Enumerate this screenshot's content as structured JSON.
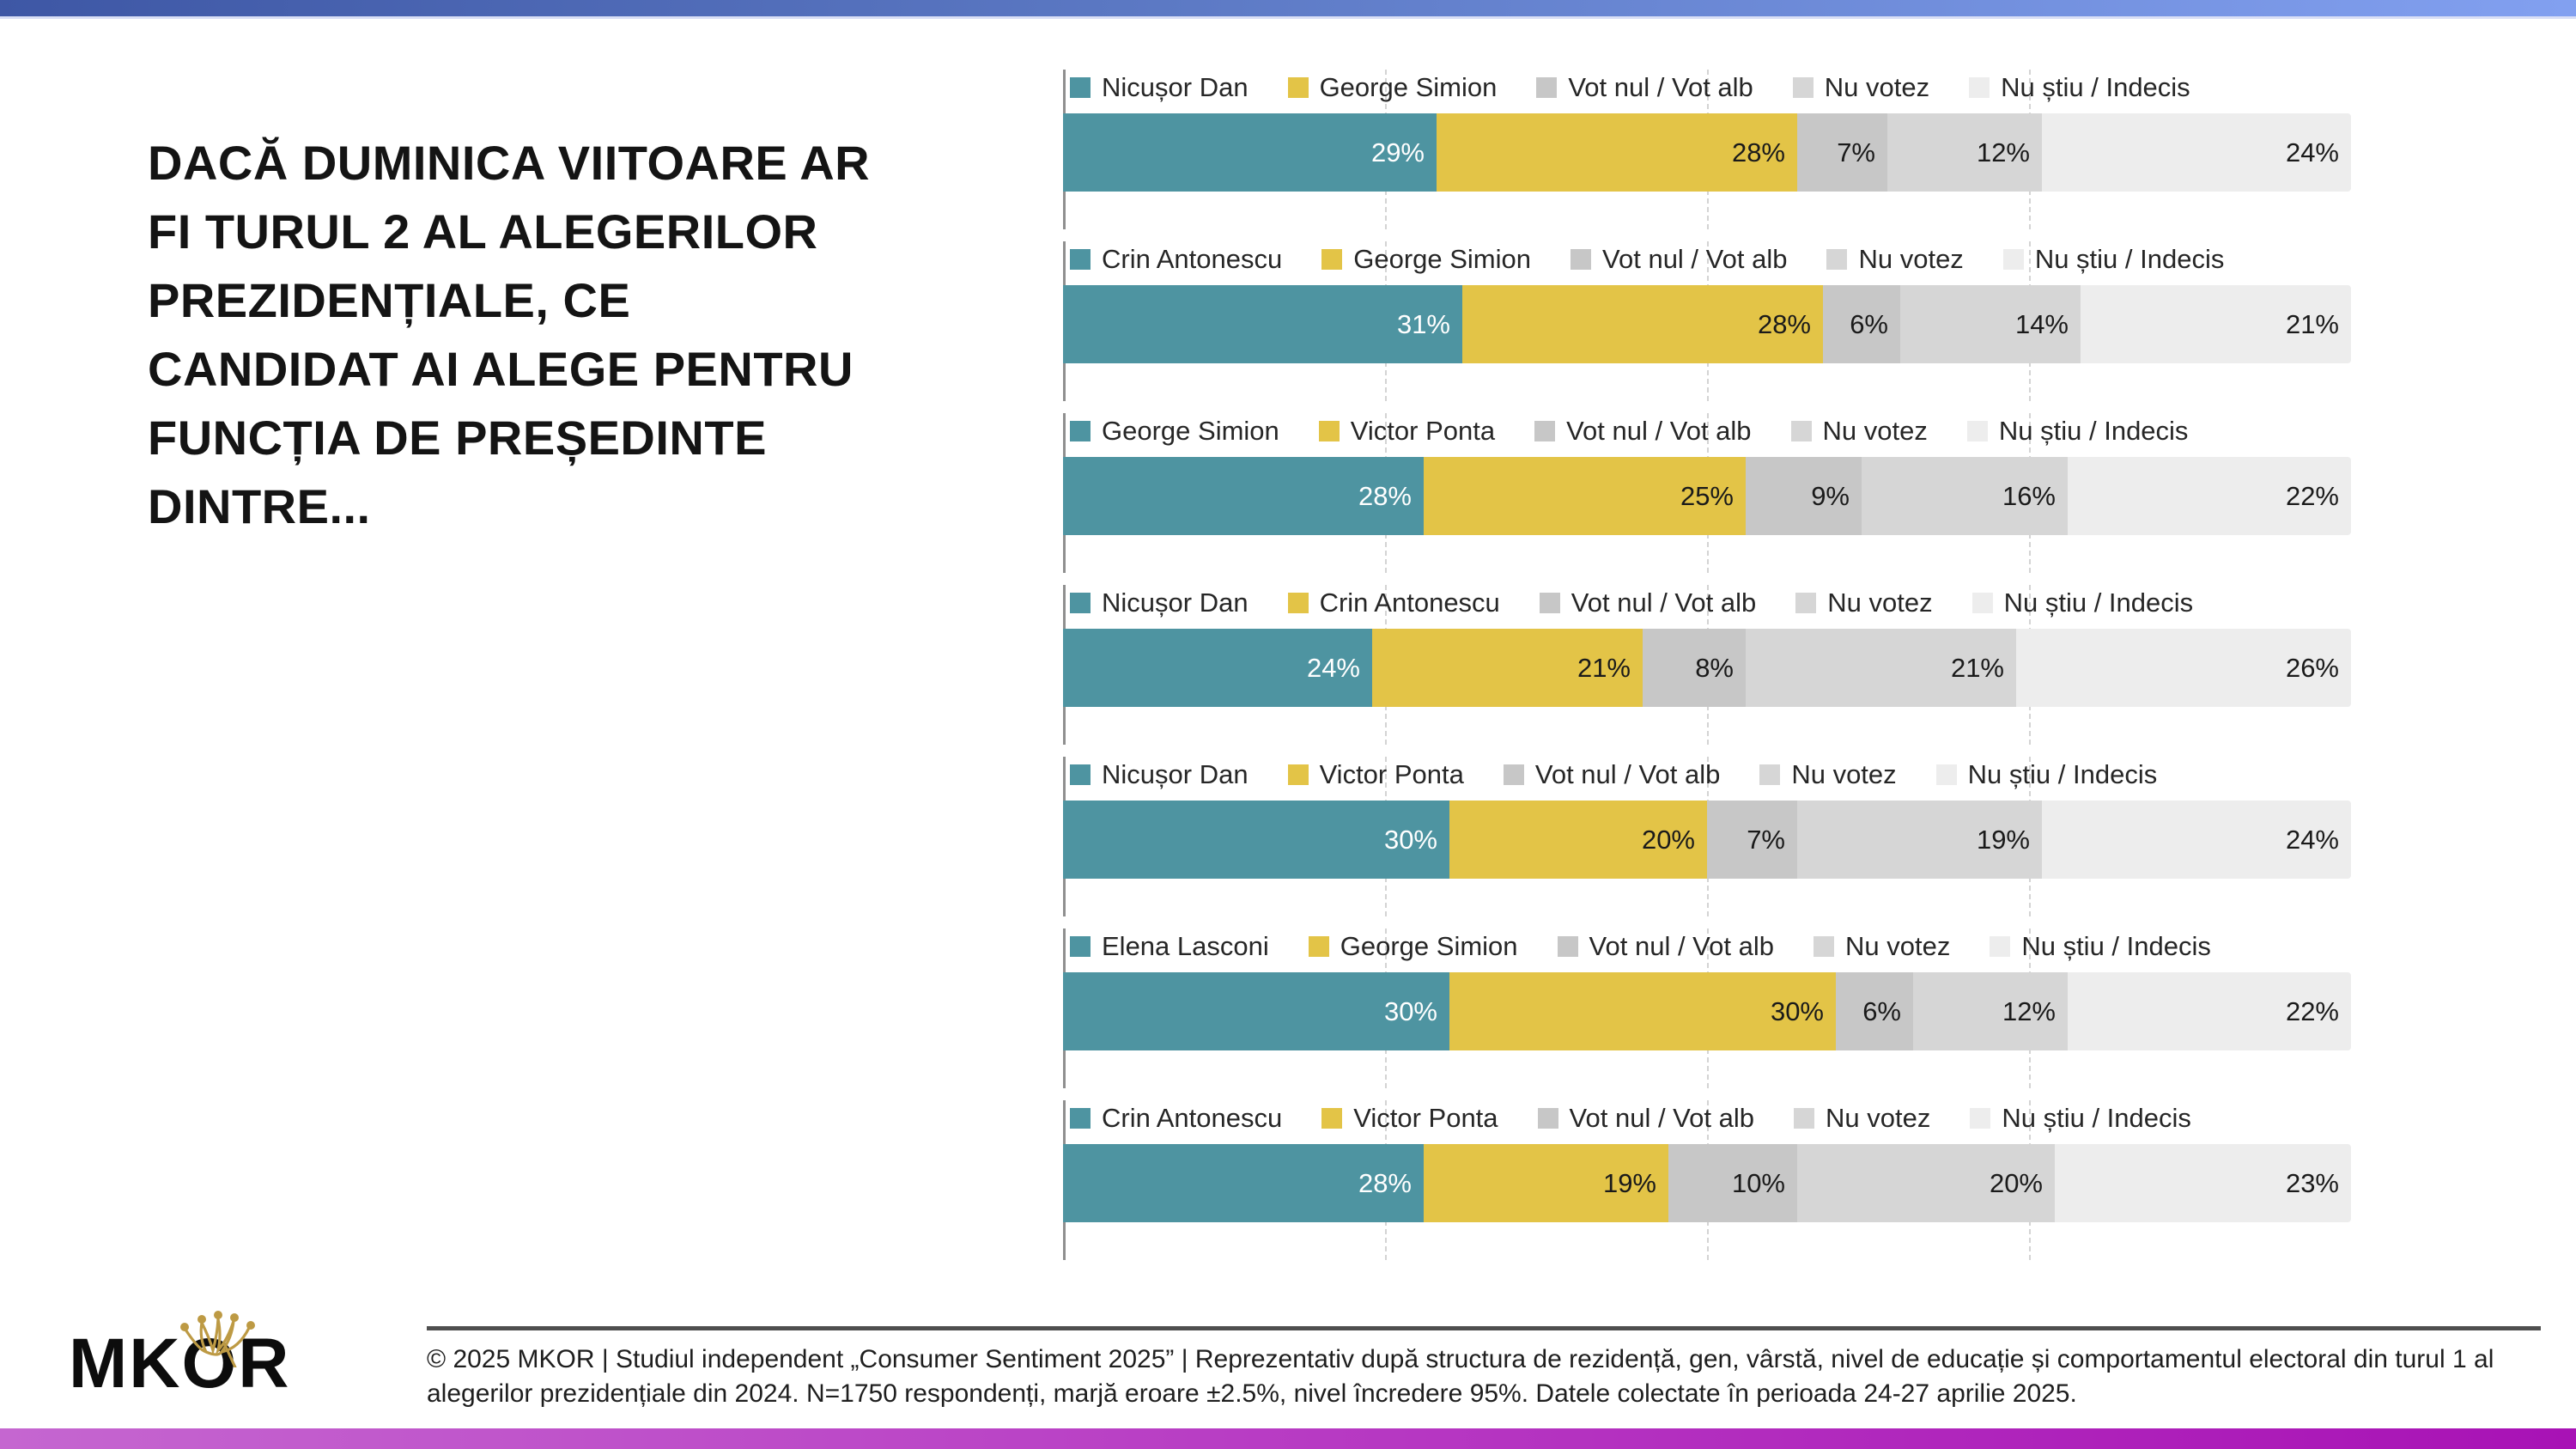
{
  "header": {
    "title_lines": [
      "DACĂ DUMINICA VIITOARE AR",
      "FI TURUL 2 AL ALEGERILOR",
      "PREZIDENȚIALE, CE",
      "CANDIDAT AI ALEGE PENTRU",
      "FUNCȚIA DE PREȘEDINTE",
      "DINTRE..."
    ]
  },
  "colors": {
    "segment_colors": [
      "#4E94A1",
      "#E3C447",
      "#C7C7C7",
      "#D6D6D6",
      "#EDEDED"
    ],
    "segment_label_colors": [
      "#FFFFFF",
      "#1A1A1A",
      "#1A1A1A",
      "#1A1A1A",
      "#1A1A1A"
    ],
    "axis": "#8F8F8F",
    "gridline": "#D4D4D4",
    "top_bar_gradient": [
      "#3E57A5",
      "#82A0F0"
    ],
    "bottom_bar_gradient": [
      "#C566D0",
      "#A812B5"
    ],
    "logo_crown_gold": "#BD9A44"
  },
  "chart_data": [
    {
      "type": "bar",
      "stacked": true,
      "orientation": "horizontal",
      "xlim": [
        0,
        100
      ],
      "legend_position": "top",
      "grid": "vertical dashed at 25/50/75",
      "categories": [
        "Nicușor Dan",
        "George Simion",
        "Vot nul / Vot alb",
        "Nu votez",
        "Nu știu / Indecis"
      ],
      "values": [
        29,
        28,
        7,
        12,
        24
      ],
      "labels": [
        "29%",
        "28%",
        "7%",
        "12%",
        "24%"
      ]
    },
    {
      "type": "bar",
      "stacked": true,
      "orientation": "horizontal",
      "xlim": [
        0,
        100
      ],
      "legend_position": "top",
      "grid": "vertical dashed at 25/50/75",
      "categories": [
        "Crin Antonescu",
        "George Simion",
        "Vot nul / Vot alb",
        "Nu votez",
        "Nu știu / Indecis"
      ],
      "values": [
        31,
        28,
        6,
        14,
        21
      ],
      "labels": [
        "31%",
        "28%",
        "6%",
        "14%",
        "21%"
      ]
    },
    {
      "type": "bar",
      "stacked": true,
      "orientation": "horizontal",
      "xlim": [
        0,
        100
      ],
      "legend_position": "top",
      "grid": "vertical dashed at 25/50/75",
      "categories": [
        "George Simion",
        "Victor Ponta",
        "Vot nul / Vot alb",
        "Nu votez",
        "Nu știu / Indecis"
      ],
      "values": [
        28,
        25,
        9,
        16,
        22
      ],
      "labels": [
        "28%",
        "25%",
        "9%",
        "16%",
        "22%"
      ]
    },
    {
      "type": "bar",
      "stacked": true,
      "orientation": "horizontal",
      "xlim": [
        0,
        100
      ],
      "legend_position": "top",
      "grid": "vertical dashed at 25/50/75",
      "categories": [
        "Nicușor Dan",
        "Crin Antonescu",
        "Vot nul / Vot alb",
        "Nu votez",
        "Nu știu / Indecis"
      ],
      "values": [
        24,
        21,
        8,
        21,
        26
      ],
      "labels": [
        "24%",
        "21%",
        "8%",
        "21%",
        "26%"
      ]
    },
    {
      "type": "bar",
      "stacked": true,
      "orientation": "horizontal",
      "xlim": [
        0,
        100
      ],
      "legend_position": "top",
      "grid": "vertical dashed at 25/50/75",
      "categories": [
        "Nicușor Dan",
        "Victor Ponta",
        "Vot nul / Vot alb",
        "Nu votez",
        "Nu știu / Indecis"
      ],
      "values": [
        30,
        20,
        7,
        19,
        24
      ],
      "labels": [
        "30%",
        "20%",
        "7%",
        "19%",
        "24%"
      ]
    },
    {
      "type": "bar",
      "stacked": true,
      "orientation": "horizontal",
      "xlim": [
        0,
        100
      ],
      "legend_position": "top",
      "grid": "vertical dashed at 25/50/75",
      "categories": [
        "Elena Lasconi",
        "George Simion",
        "Vot nul / Vot alb",
        "Nu votez",
        "Nu știu / Indecis"
      ],
      "values": [
        30,
        30,
        6,
        12,
        22
      ],
      "labels": [
        "30%",
        "30%",
        "6%",
        "12%",
        "22%"
      ]
    },
    {
      "type": "bar",
      "stacked": true,
      "orientation": "horizontal",
      "xlim": [
        0,
        100
      ],
      "legend_position": "top",
      "grid": "vertical dashed at 25/50/75",
      "categories": [
        "Crin Antonescu",
        "Victor Ponta",
        "Vot nul / Vot alb",
        "Nu votez",
        "Nu știu / Indecis"
      ],
      "values": [
        28,
        19,
        10,
        20,
        23
      ],
      "labels": [
        "28%",
        "19%",
        "10%",
        "20%",
        "23%"
      ]
    }
  ],
  "footer": {
    "logo_text": "MKOR",
    "disclaimer": "© 2025 MKOR | Studiul independent „Consumer Sentiment 2025” | Reprezentativ după structura de rezidență, gen, vârstă, nivel de educație și comportamentul electoral din turul 1 al alegerilor prezidențiale din 2024. N=1750 respondenți, marjă eroare ±2.5%, nivel încredere 95%. Datele colectate în perioada 24-27 aprilie 2025."
  }
}
